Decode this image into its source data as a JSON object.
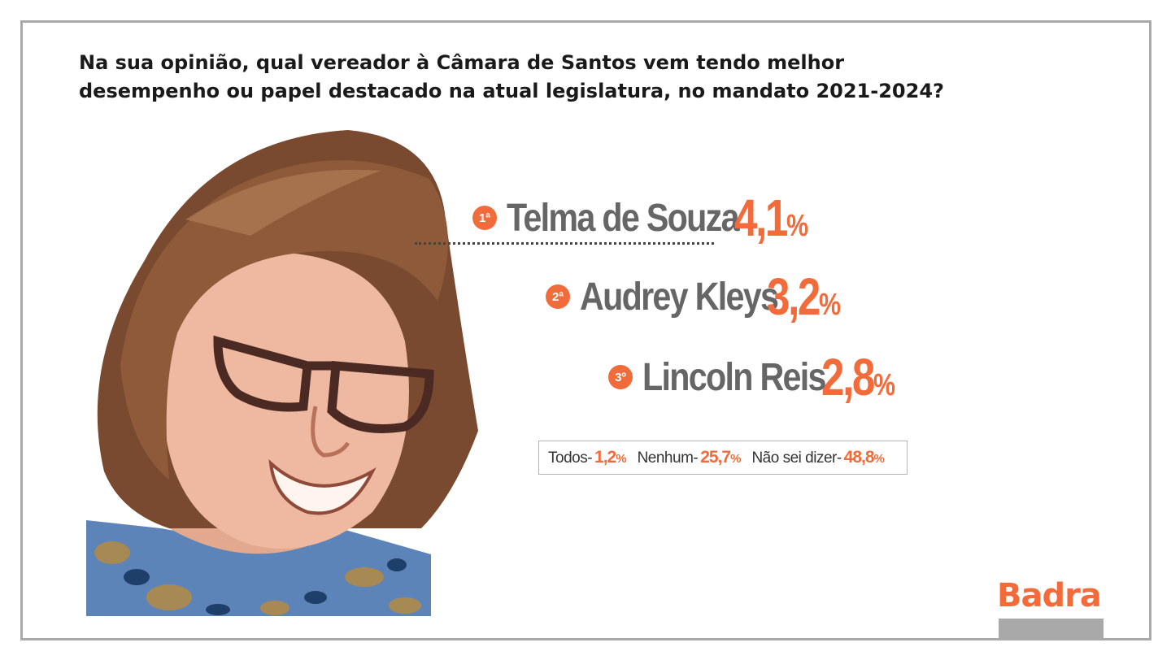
{
  "question": {
    "line1": "Na sua opinião, qual vereador à Câmara de Santos vem tendo melhor",
    "line2": "desempenho ou papel destacado na atual legislatura, no mandato 2021-2024?"
  },
  "chart_data": {
    "type": "table",
    "ranking": [
      {
        "position": "1ª",
        "name": "Telma de Souza",
        "value": "4,1",
        "unit": "%"
      },
      {
        "position": "2ª",
        "name": "Audrey Kleys",
        "value": "3,2",
        "unit": "%"
      },
      {
        "position": "3º",
        "name": "Lincoln Reis",
        "value": "2,8",
        "unit": "%"
      }
    ],
    "others": [
      {
        "label": "Todos-",
        "value": "1,2",
        "unit": "%"
      },
      {
        "label": "Nenhum-",
        "value": "25,7",
        "unit": "%"
      },
      {
        "label": "Não sei dizer-",
        "value": "48,8",
        "unit": "%"
      }
    ]
  },
  "brand": {
    "logo": "Badra",
    "accent": "#f26b3a",
    "name_color": "#666666",
    "frame_color": "#a9a9a9"
  }
}
